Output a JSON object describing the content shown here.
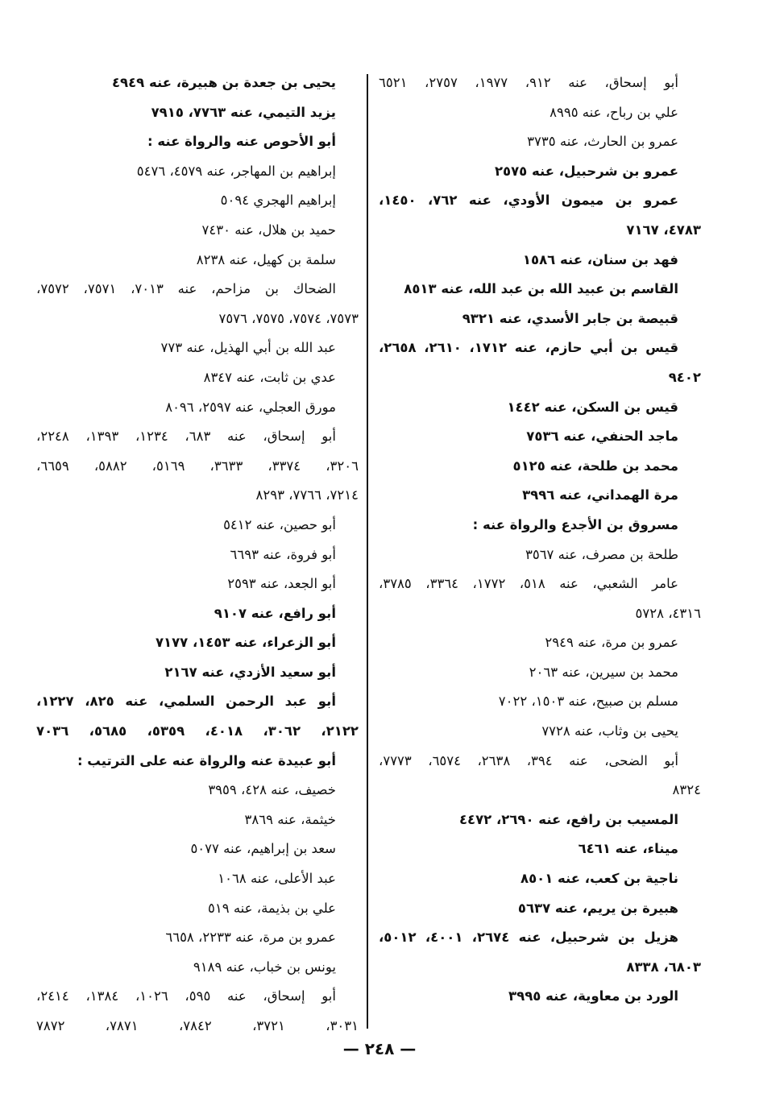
{
  "right_column": [
    {
      "t": "أبو إسحاق، عنه ٩١٢، ١٩٧٧، ٢٧٥٧، ٦٥٢١",
      "f": "j"
    },
    {
      "t": "علي بن رباح، عنه ٨٩٩٥",
      "f": ""
    },
    {
      "t": "عمرو بن الحارث، عنه ٣٧٣٥",
      "f": ""
    },
    {
      "t": "عمرو بن شرحبيل، عنه ٢٥٧٥",
      "f": "b"
    },
    {
      "t": "عمرو بن ميمون الأودي، عنه ٧٦٢، ١٤٥٠،",
      "f": "b j"
    },
    {
      "t": "٤٧٨٣، ٧١٦٧",
      "f": "b c"
    },
    {
      "t": "فهد بن سنان، عنه ١٥٨٦",
      "f": "b"
    },
    {
      "t": "القاسم بن عبيد الله بن عبد الله، عنه ٨٥١٣",
      "f": "b"
    },
    {
      "t": "قبيصة بن جابر الأسدي، عنه ٩٣٢١",
      "f": "b"
    },
    {
      "t": "قيس بن أبي حازم، عنه ١٧١٢، ٢٦١٠، ٢٦٥٨،",
      "f": "b j"
    },
    {
      "t": "٩٤٠٢",
      "f": "b c"
    },
    {
      "t": "قيس بن السكن، عنه ١٤٤٢",
      "f": "b"
    },
    {
      "t": "ماجد الحنفي، عنه ٧٥٣٦",
      "f": "b"
    },
    {
      "t": "محمد بن طلحة، عنه ٥١٢٥",
      "f": "b"
    },
    {
      "t": "مرة الهمداني، عنه ٣٩٩٦",
      "f": "b"
    },
    {
      "t": "مسروق بن الأجدع والرواة عنه :",
      "f": "b"
    },
    {
      "t": "طلحة بن مصرف، عنه ٣٥٦٧",
      "f": ""
    },
    {
      "t": "عامر الشعبي، عنه ٥١٨، ١٧٧٢، ٣٣٦٤، ٣٧٨٥،",
      "f": "j"
    },
    {
      "t": "٤٣١٦، ٥٧٢٨",
      "f": "c"
    },
    {
      "t": "عمرو بن مرة، عنه ٢٩٤٩",
      "f": ""
    },
    {
      "t": "محمد بن سيرين، عنه ٢٠٦٣",
      "f": ""
    },
    {
      "t": "مسلم بن صبيح، عنه ١٥٠٣، ٧٠٢٢",
      "f": ""
    },
    {
      "t": "يحيى بن وثاب، عنه ٧٧٢٨",
      "f": ""
    },
    {
      "t": "أبو الضحى، عنه ٣٩٤، ٢٦٣٨، ٦٥٧٤، ٧٧٧٣،",
      "f": "j"
    },
    {
      "t": "٨٣٢٤",
      "f": "c"
    },
    {
      "t": "المسيب بن رافع، عنه ٢٦٩٠، ٤٤٧٢",
      "f": "b"
    },
    {
      "t": "ميناء، عنه ٦٤٦١",
      "f": "b"
    },
    {
      "t": "ناجية بن كعب، عنه ٨٥٠١",
      "f": "b"
    },
    {
      "t": "هبيرة بن يريم، عنه ٥٦٣٧",
      "f": "b"
    },
    {
      "t": "هزيل بن شرحبيل، عنه ٢٦٧٤، ٤٠٠١، ٥٠١٢،",
      "f": "b j"
    },
    {
      "t": "٦٨٠٣، ٨٣٣٨",
      "f": "b c"
    },
    {
      "t": "الورد بن معاوية، عنه ٣٩٩٥",
      "f": "b"
    }
  ],
  "left_column": [
    {
      "t": "يحيى بن جعدة بن هبيرة، عنه ٤٩٤٩",
      "f": "b"
    },
    {
      "t": "يزيد التيمي، عنه ٧٧٦٣، ٧٩١٥",
      "f": "b"
    },
    {
      "t": "أبو الأحوص عنه والرواة عنه :",
      "f": "b"
    },
    {
      "t": "إبراهيم بن المهاجر، عنه ٤٥٧٩، ٥٤٧٦",
      "f": ""
    },
    {
      "t": "إبراهيم الهجري ٥٠٩٤",
      "f": ""
    },
    {
      "t": "حميد بن هلال، عنه ٧٤٣٠",
      "f": ""
    },
    {
      "t": "سلمة بن كهيل، عنه ٨٢٣٨",
      "f": ""
    },
    {
      "t": "الضحاك بن مزاحم، عنه ٧٠١٣، ٧٥٧١، ٧٥٧٢،",
      "f": "j"
    },
    {
      "t": "٧٥٧٣، ٧٥٧٤، ٧٥٧٥، ٧٥٧٦",
      "f": "c"
    },
    {
      "t": "عبد الله بن أبي الهذيل، عنه ٧٧٣",
      "f": ""
    },
    {
      "t": "عدي بن ثابت، عنه ٨٣٤٧",
      "f": ""
    },
    {
      "t": "مورق العجلي، عنه ٢٥٩٧، ٨٠٩٦",
      "f": ""
    },
    {
      "t": "أبو إسحاق، عنه ٦٨٣، ١٢٣٤، ١٣٩٣، ٢٢٤٨،",
      "f": "j"
    },
    {
      "t": "٣٢٠٦، ٣٣٧٤، ٣٦٣٣، ٥١٦٩، ٥٨٨٢، ٦٦٥٩،",
      "f": "c j"
    },
    {
      "t": "٧٢١٤، ٧٧٦٦، ٨٢٩٣",
      "f": "c"
    },
    {
      "t": "أبو حصين، عنه ٥٤١٢",
      "f": ""
    },
    {
      "t": "أبو فروة، عنه ٦٦٩٣",
      "f": ""
    },
    {
      "t": "أبو الجعد، عنه ٢٥٩٣",
      "f": ""
    },
    {
      "t": "أبو رافع، عنه ٩١٠٧",
      "f": "b"
    },
    {
      "t": "أبو الزعراء، عنه ١٤٥٣، ٧١٧٧",
      "f": "b"
    },
    {
      "t": "أبو سعيد الأزدي، عنه ٢١٦٧",
      "f": "b"
    },
    {
      "t": "أبو عبد الرحمن السلمي، عنه ٨٢٥، ١٢٢٧،",
      "f": "b j"
    },
    {
      "t": "٢١٢٢، ٣٠٦٢، ٤٠١٨، ٥٣٥٩، ٥٦٨٥، ٧٠٣٦",
      "f": "b c j"
    },
    {
      "t": "أبو عبيدة عنه والرواة عنه على الترتيب :",
      "f": "b"
    },
    {
      "t": "خصيف، عنه ٤٢٨، ٣٩٥٩",
      "f": ""
    },
    {
      "t": "خيثمة، عنه ٣٨٦٩",
      "f": ""
    },
    {
      "t": "سعد بن إبراهيم، عنه ٥٠٧٧",
      "f": ""
    },
    {
      "t": "عبد الأعلى، عنه ١٠٦٨",
      "f": ""
    },
    {
      "t": "علي بن بذيمة، عنه ٥١٩",
      "f": ""
    },
    {
      "t": "عمرو بن مرة، عنه ٢٢٣٣، ٦٦٥٨",
      "f": ""
    },
    {
      "t": "يونس بن خباب، عنه ٩١٨٩",
      "f": ""
    },
    {
      "t": "أبو إسحاق، عنه ٥٩٥، ١٠٢٦، ١٣٨٤، ٢٤١٤،",
      "f": "j"
    },
    {
      "t": "٣٠٣١، ٣٧٢١، ٧٨٤٢، ٧٨٧١، ٧٨٧٢",
      "f": "c j"
    }
  ],
  "page_number": "— ٢٤٨ —"
}
